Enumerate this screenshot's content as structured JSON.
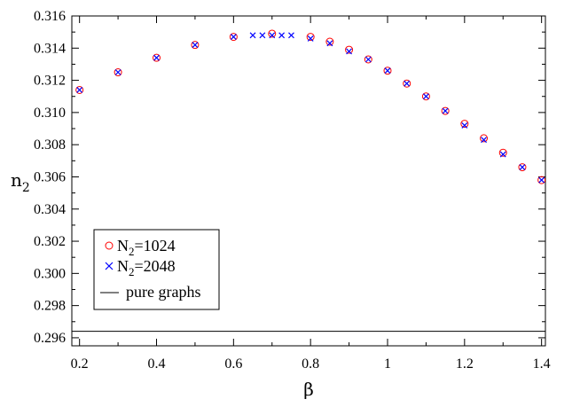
{
  "chart_data": {
    "type": "scatter",
    "xlabel": "β",
    "ylabel": {
      "main": "n",
      "sub": "2"
    },
    "xlim": [
      0.18,
      1.41
    ],
    "ylim": [
      0.2955,
      0.316
    ],
    "x_ticks": [
      "0.2",
      "0.4",
      "0.6",
      "0.8",
      "1",
      "1.2",
      "1.4"
    ],
    "x_tick_values": [
      0.2,
      0.4,
      0.6,
      0.8,
      1.0,
      1.2,
      1.4
    ],
    "y_ticks": [
      "0.296",
      "0.298",
      "0.300",
      "0.302",
      "0.304",
      "0.306",
      "0.308",
      "0.310",
      "0.312",
      "0.314",
      "0.316"
    ],
    "y_tick_values": [
      0.296,
      0.298,
      0.3,
      0.302,
      0.304,
      0.306,
      0.308,
      0.31,
      0.312,
      0.314,
      0.316
    ],
    "grid": false,
    "legend_position": "bottom-left",
    "series": [
      {
        "name": {
          "main": "N",
          "sub": "2",
          "rest": "=1024"
        },
        "marker": "circle",
        "color": "#ff0000",
        "points": [
          [
            0.2,
            0.3114
          ],
          [
            0.3,
            0.3125
          ],
          [
            0.4,
            0.3134
          ],
          [
            0.5,
            0.3142
          ],
          [
            0.6,
            0.3147
          ],
          [
            0.7,
            0.3149
          ],
          [
            0.8,
            0.3147
          ],
          [
            0.85,
            0.3144
          ],
          [
            0.9,
            0.3139
          ],
          [
            0.95,
            0.3133
          ],
          [
            1.0,
            0.3126
          ],
          [
            1.05,
            0.3118
          ],
          [
            1.1,
            0.311
          ],
          [
            1.15,
            0.3101
          ],
          [
            1.2,
            0.3093
          ],
          [
            1.25,
            0.3084
          ],
          [
            1.3,
            0.3075
          ],
          [
            1.35,
            0.3066
          ],
          [
            1.4,
            0.3058
          ]
        ]
      },
      {
        "name": {
          "main": "N",
          "sub": "2",
          "rest": "=2048"
        },
        "marker": "x",
        "color": "#0000ff",
        "points": [
          [
            0.2,
            0.3114
          ],
          [
            0.3,
            0.3125
          ],
          [
            0.4,
            0.3134
          ],
          [
            0.5,
            0.3142
          ],
          [
            0.6,
            0.3147
          ],
          [
            0.65,
            0.3148
          ],
          [
            0.675,
            0.3148
          ],
          [
            0.7,
            0.3148
          ],
          [
            0.725,
            0.3148
          ],
          [
            0.75,
            0.3148
          ],
          [
            0.8,
            0.3146
          ],
          [
            0.85,
            0.3143
          ],
          [
            0.9,
            0.3138
          ],
          [
            0.95,
            0.3133
          ],
          [
            1.0,
            0.3126
          ],
          [
            1.05,
            0.3118
          ],
          [
            1.1,
            0.311
          ],
          [
            1.15,
            0.3101
          ],
          [
            1.2,
            0.3092
          ],
          [
            1.25,
            0.3083
          ],
          [
            1.3,
            0.3074
          ],
          [
            1.35,
            0.3066
          ],
          [
            1.4,
            0.3058
          ]
        ]
      },
      {
        "name": {
          "main": "pure graphs",
          "sub": "",
          "rest": ""
        },
        "marker": "line",
        "color": "#000000",
        "y": 0.2964
      }
    ]
  }
}
